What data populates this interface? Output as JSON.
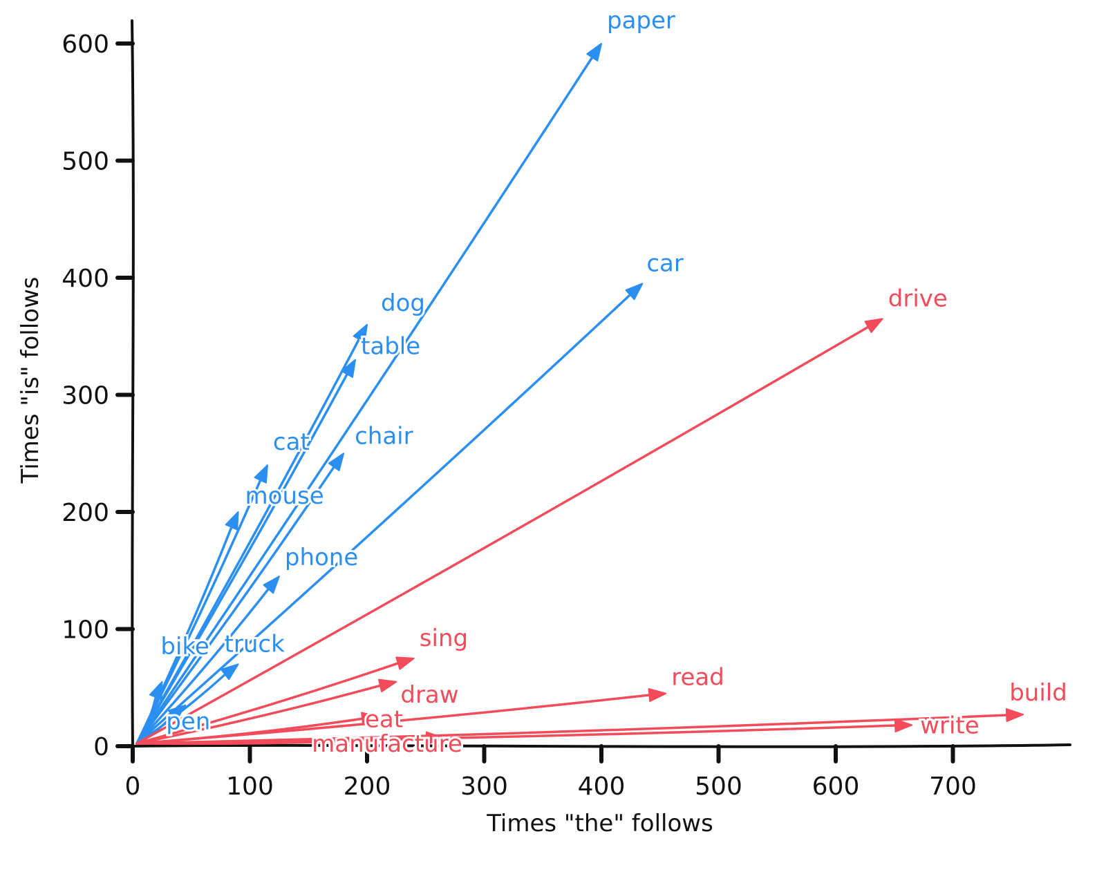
{
  "chart_data": {
    "type": "vector",
    "title": "",
    "xlabel": "Times \"the\" follows",
    "ylabel": "Times \"is\" follows",
    "xlim": [
      0,
      800
    ],
    "ylim": [
      0,
      620
    ],
    "x_ticks": [
      0,
      100,
      200,
      300,
      400,
      500,
      600,
      700
    ],
    "y_ticks": [
      0,
      100,
      200,
      300,
      400,
      500,
      600
    ],
    "grid": false,
    "colors": {
      "noun": "#2a8ff0",
      "verb": "#f24b5a",
      "axis": "#111111"
    },
    "vectors": [
      {
        "label": "paper",
        "x": 400,
        "y": 600,
        "color": "noun"
      },
      {
        "label": "car",
        "x": 435,
        "y": 395,
        "color": "noun"
      },
      {
        "label": "dog",
        "x": 200,
        "y": 360,
        "color": "noun"
      },
      {
        "label": "table",
        "x": 190,
        "y": 330,
        "color": "noun"
      },
      {
        "label": "cat",
        "x": 115,
        "y": 240,
        "color": "noun"
      },
      {
        "label": "chair",
        "x": 180,
        "y": 250,
        "color": "noun"
      },
      {
        "label": "mouse",
        "x": 90,
        "y": 200,
        "color": "noun"
      },
      {
        "label": "phone",
        "x": 125,
        "y": 145,
        "color": "noun"
      },
      {
        "label": "bike",
        "x": 25,
        "y": 55,
        "color": "noun"
      },
      {
        "label": "truck",
        "x": 90,
        "y": 70,
        "color": "noun"
      },
      {
        "label": "pen",
        "x": 45,
        "y": 35,
        "color": "noun"
      },
      {
        "label": "drive",
        "x": 640,
        "y": 365,
        "color": "verb"
      },
      {
        "label": "sing",
        "x": 240,
        "y": 75,
        "color": "verb"
      },
      {
        "label": "draw",
        "x": 225,
        "y": 55,
        "color": "verb"
      },
      {
        "label": "eat",
        "x": 210,
        "y": 25,
        "color": "verb"
      },
      {
        "label": "read",
        "x": 455,
        "y": 45,
        "color": "verb"
      },
      {
        "label": "write",
        "x": 665,
        "y": 18,
        "color": "verb"
      },
      {
        "label": "build",
        "x": 760,
        "y": 27,
        "color": "verb"
      },
      {
        "label": "manufacture",
        "x": 265,
        "y": 7,
        "color": "verb"
      }
    ]
  }
}
